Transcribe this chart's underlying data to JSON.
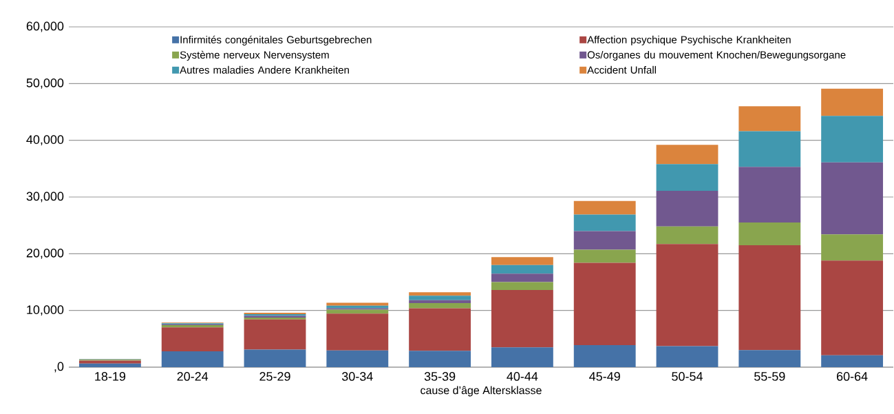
{
  "chart_data": {
    "type": "bar",
    "stacked": true,
    "xlabel": "cause d’âge Altersklasse",
    "categories": [
      "18-19",
      "20-24",
      "25-29",
      "30-34",
      "35-39",
      "40-44",
      "45-49",
      "50-54",
      "55-59",
      "60-64"
    ],
    "series": [
      {
        "name": "Infirmités congénitales Geburtsgebrechen",
        "color": "#4572a7",
        "values": [
          650,
          2800,
          3100,
          2950,
          2900,
          3500,
          3900,
          3700,
          3000,
          2100
        ]
      },
      {
        "name": "Affection psychique Psychische Krankheiten",
        "color": "#aa4643",
        "values": [
          500,
          4200,
          5300,
          6500,
          7500,
          10100,
          14500,
          18000,
          18500,
          16700
        ]
      },
      {
        "name": "Système nerveux  Nervensystem",
        "color": "#89a54e",
        "values": [
          150,
          400,
          350,
          700,
          900,
          1400,
          2300,
          3100,
          4000,
          4600
        ]
      },
      {
        "name": "Os/organes du mouvement  Knochen/Bewegungsorgane",
        "color": "#71588f",
        "values": [
          50,
          150,
          300,
          250,
          500,
          1500,
          3300,
          6300,
          9800,
          12700
        ]
      },
      {
        "name": "Autres maladies Andere Krankheiten",
        "color": "#4198af",
        "values": [
          50,
          200,
          300,
          450,
          800,
          1500,
          2900,
          4700,
          6300,
          8200
        ]
      },
      {
        "name": "Accident  Unfall",
        "color": "#db843d",
        "values": [
          50,
          100,
          250,
          500,
          600,
          1400,
          2400,
          3400,
          4400,
          4800
        ]
      }
    ],
    "ylim": [
      0,
      60000
    ],
    "yticks": [
      {
        "value": 0,
        "label": ",0"
      },
      {
        "value": 10000,
        "label": "10,000"
      },
      {
        "value": 20000,
        "label": "20,000"
      },
      {
        "value": 30000,
        "label": "30,000"
      },
      {
        "value": 40000,
        "label": "40,000"
      },
      {
        "value": 50000,
        "label": "50,000"
      },
      {
        "value": 60000,
        "label": "60,000"
      }
    ],
    "grid": "y",
    "legend": "top"
  }
}
